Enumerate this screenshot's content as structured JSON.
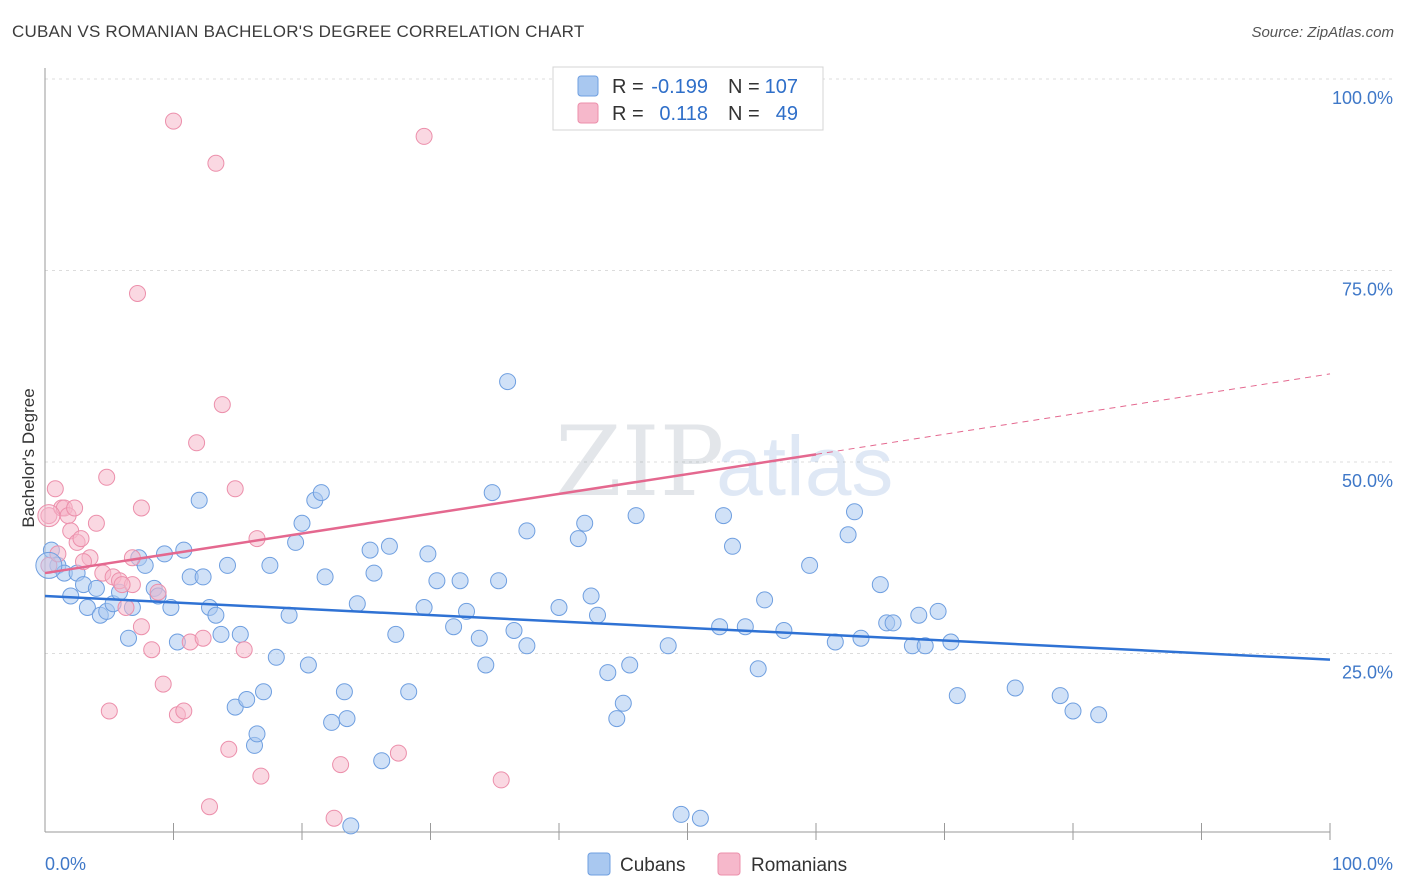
{
  "header": {
    "title": "CUBAN VS ROMANIAN BACHELOR'S DEGREE CORRELATION CHART",
    "source": "Source: ZipAtlas.com"
  },
  "watermark": {
    "zip": "ZIP",
    "atlas": "atlas"
  },
  "legend": {
    "rows": [
      {
        "r_label": "R =",
        "r_value": "-0.199",
        "n_label": "N =",
        "n_value": "107",
        "color": "#a9c8f0"
      },
      {
        "r_label": "R =",
        "r_value": "0.118",
        "n_label": "N =",
        "n_value": "49",
        "color": "#f6b8cb"
      }
    ]
  },
  "chart_data": {
    "type": "scatter",
    "xlabel": "",
    "ylabel": "Bachelor's Degree",
    "xlim": [
      0,
      100
    ],
    "ylim": [
      0,
      100
    ],
    "x_tick_labels": [
      "0.0%",
      "100.0%"
    ],
    "y_tick_labels": [
      "100.0%",
      "75.0%",
      "50.0%",
      "25.0%"
    ],
    "y_ticks": [
      100,
      75,
      50,
      25
    ],
    "grid": true,
    "legend_position": "top-center",
    "series": [
      {
        "name": "Cubans",
        "color": "#a9c8f0",
        "stroke": "#6f9fe0",
        "trend_color": "#2f72d4",
        "trend": {
          "x0": 0,
          "y0": 32.5,
          "x1": 100,
          "y1": 24.2
        },
        "points": [
          [
            0.5,
            38.5
          ],
          [
            1,
            36.5
          ],
          [
            1.5,
            35.5
          ],
          [
            2,
            32.5
          ],
          [
            2.5,
            35.5
          ],
          [
            3,
            34
          ],
          [
            3.3,
            31
          ],
          [
            4,
            33.5
          ],
          [
            4.3,
            30
          ],
          [
            4.8,
            30.5
          ],
          [
            5.3,
            31.5
          ],
          [
            5.8,
            33
          ],
          [
            6.5,
            27
          ],
          [
            6.8,
            31
          ],
          [
            7.3,
            37.5
          ],
          [
            7.8,
            36.5
          ],
          [
            8.5,
            33.5
          ],
          [
            8.8,
            32.5
          ],
          [
            9.3,
            38
          ],
          [
            9.8,
            31
          ],
          [
            10.3,
            26.5
          ],
          [
            10.8,
            38.5
          ],
          [
            11.3,
            35
          ],
          [
            12,
            45
          ],
          [
            12.3,
            35
          ],
          [
            12.8,
            31
          ],
          [
            13.3,
            30
          ],
          [
            13.7,
            27.5
          ],
          [
            14.2,
            36.5
          ],
          [
            14.8,
            18
          ],
          [
            15.2,
            27.5
          ],
          [
            15.7,
            19
          ],
          [
            16.3,
            13
          ],
          [
            16.5,
            14.5
          ],
          [
            17,
            20
          ],
          [
            17.5,
            36.5
          ],
          [
            18,
            24.5
          ],
          [
            19,
            30
          ],
          [
            19.5,
            39.5
          ],
          [
            20,
            42
          ],
          [
            20.5,
            23.5
          ],
          [
            21,
            45
          ],
          [
            21.5,
            46
          ],
          [
            21.8,
            35
          ],
          [
            22.3,
            16
          ],
          [
            23.3,
            20
          ],
          [
            23.5,
            16.5
          ],
          [
            24.3,
            31.5
          ],
          [
            25.3,
            38.5
          ],
          [
            25.6,
            35.5
          ],
          [
            26.2,
            11
          ],
          [
            26.8,
            39
          ],
          [
            27.3,
            27.5
          ],
          [
            28.3,
            20
          ],
          [
            29.5,
            31
          ],
          [
            29.8,
            38
          ],
          [
            30.5,
            34.5
          ],
          [
            31.8,
            28.5
          ],
          [
            32.3,
            34.5
          ],
          [
            32.8,
            30.5
          ],
          [
            33.8,
            27
          ],
          [
            34.3,
            23.5
          ],
          [
            34.8,
            46
          ],
          [
            35.3,
            34.5
          ],
          [
            36,
            60.5
          ],
          [
            36.5,
            28
          ],
          [
            37.5,
            26
          ],
          [
            37.5,
            41
          ],
          [
            40,
            31
          ],
          [
            41.5,
            40
          ],
          [
            42,
            42
          ],
          [
            42.5,
            32.5
          ],
          [
            43,
            30
          ],
          [
            43.8,
            22.5
          ],
          [
            44.5,
            16.5
          ],
          [
            45,
            18.5
          ],
          [
            45.5,
            23.5
          ],
          [
            46,
            43
          ],
          [
            48.5,
            26
          ],
          [
            49.5,
            4
          ],
          [
            51,
            3.5
          ],
          [
            52.5,
            28.5
          ],
          [
            52.8,
            43
          ],
          [
            53.5,
            39
          ],
          [
            54.5,
            28.5
          ],
          [
            55.5,
            23
          ],
          [
            56,
            32
          ],
          [
            57.5,
            28
          ],
          [
            59.5,
            36.5
          ],
          [
            61.5,
            26.5
          ],
          [
            62.5,
            40.5
          ],
          [
            63,
            43.5
          ],
          [
            63.5,
            27
          ],
          [
            65,
            34
          ],
          [
            65.5,
            29
          ],
          [
            66,
            29
          ],
          [
            67.5,
            26
          ],
          [
            68,
            30
          ],
          [
            68.5,
            26
          ],
          [
            69.5,
            30.5
          ],
          [
            70.5,
            26.5
          ],
          [
            71,
            19.5
          ],
          [
            75.5,
            20.5
          ],
          [
            79,
            19.5
          ],
          [
            80,
            17.5
          ],
          [
            82,
            17
          ],
          [
            23.8,
            2.5
          ]
        ]
      },
      {
        "name": "Romanians",
        "color": "#f6b8cb",
        "stroke": "#ec8fab",
        "trend_color": "#e4688f",
        "trend": {
          "x0": 0,
          "y0": 35.5,
          "x1": 60,
          "y1": 51,
          "x_dash_end": 100,
          "y_dash_end": 61.5
        },
        "points": [
          [
            0.3,
            36.5
          ],
          [
            0.3,
            43
          ],
          [
            0.8,
            46.5
          ],
          [
            1.3,
            44
          ],
          [
            1.5,
            44
          ],
          [
            1.8,
            43
          ],
          [
            2,
            41
          ],
          [
            2.3,
            44
          ],
          [
            2.5,
            39.5
          ],
          [
            2.8,
            40
          ],
          [
            3.5,
            37.5
          ],
          [
            4,
            42
          ],
          [
            4.5,
            35.5
          ],
          [
            4.8,
            48
          ],
          [
            5.3,
            35
          ],
          [
            5.8,
            34.5
          ],
          [
            6.3,
            31
          ],
          [
            6.8,
            34
          ],
          [
            6.8,
            37.5
          ],
          [
            7.2,
            72
          ],
          [
            7.5,
            28.5
          ],
          [
            7.5,
            44
          ],
          [
            8.3,
            25.5
          ],
          [
            8.8,
            33
          ],
          [
            9.2,
            21
          ],
          [
            10,
            94.5
          ],
          [
            10.3,
            17
          ],
          [
            10.8,
            17.5
          ],
          [
            11.3,
            26.5
          ],
          [
            11.8,
            52.5
          ],
          [
            12.3,
            27
          ],
          [
            12.8,
            5
          ],
          [
            13.3,
            89
          ],
          [
            13.8,
            57.5
          ],
          [
            14.3,
            12.5
          ],
          [
            14.8,
            46.5
          ],
          [
            15.5,
            25.5
          ],
          [
            16.5,
            40
          ],
          [
            16.8,
            9
          ],
          [
            22.5,
            3.5
          ],
          [
            23,
            10.5
          ],
          [
            27.5,
            12
          ],
          [
            29.5,
            92.5
          ],
          [
            35.5,
            8.5
          ],
          [
            49,
            100
          ],
          [
            5,
            17.5
          ],
          [
            6,
            34
          ],
          [
            3,
            37
          ],
          [
            1,
            38
          ]
        ]
      }
    ]
  },
  "bottom_legend": [
    {
      "label": "Cubans",
      "color": "#a9c8f0"
    },
    {
      "label": "Romanians",
      "color": "#f6b8cb"
    }
  ]
}
